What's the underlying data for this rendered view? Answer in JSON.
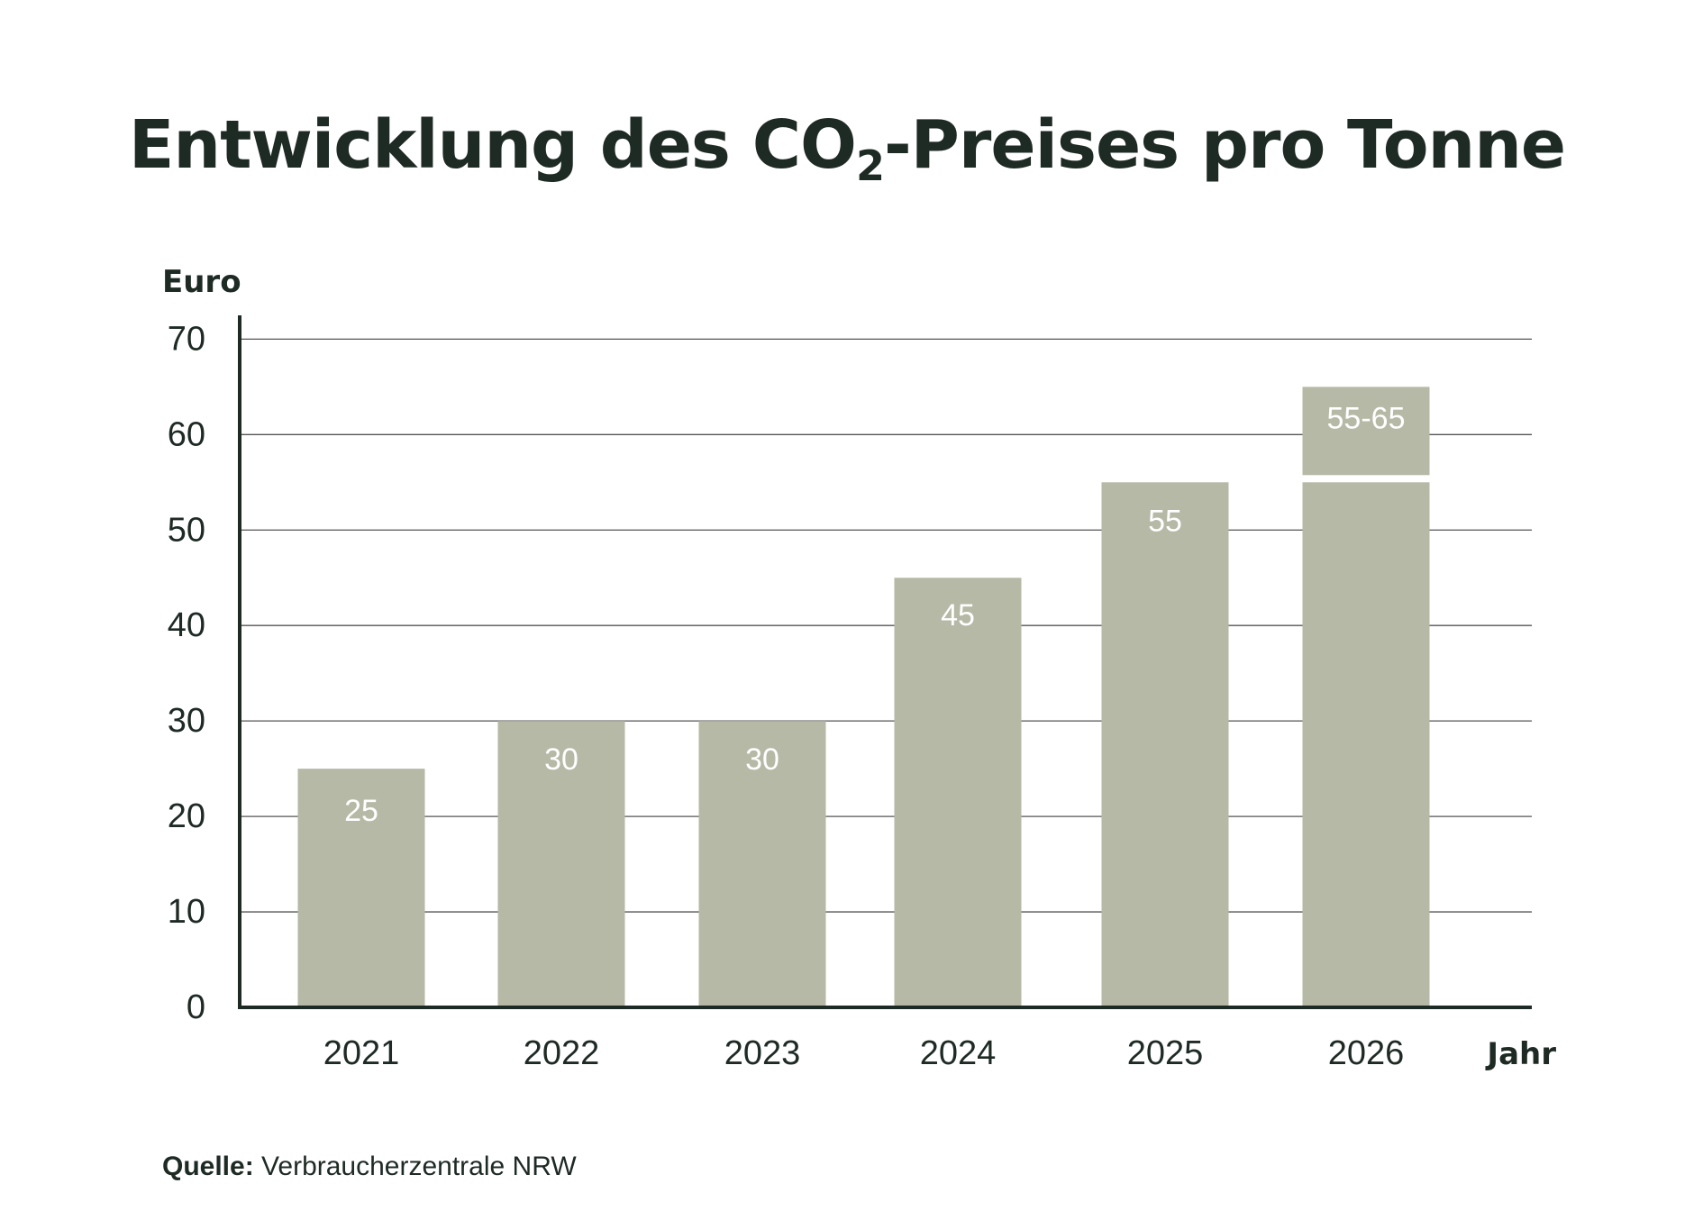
{
  "title": {
    "before_sub": "Entwicklung des CO",
    "sub": "2",
    "after_sub": "-Preises pro Tonne"
  },
  "source": {
    "label": "Quelle:",
    "text": "Verbraucherzentrale NRW"
  },
  "colors": {
    "bar": "#b5b9a5",
    "bar_label": "#ffffff",
    "text": "#1e2a24",
    "grid": "#555555",
    "axis": "#1e2a24"
  },
  "chart_data": {
    "type": "bar",
    "ylabel": "Euro",
    "xlabel": "Jahr",
    "ylim": [
      0,
      70
    ],
    "yticks": [
      0,
      10,
      20,
      30,
      40,
      50,
      60,
      70
    ],
    "grid": true,
    "categories": [
      "2021",
      "2022",
      "2023",
      "2024",
      "2025",
      "2026"
    ],
    "values": [
      25,
      30,
      30,
      45,
      55,
      55
    ],
    "labels": [
      "25",
      "30",
      "30",
      "45",
      "55",
      "55-65"
    ],
    "range_extension": {
      "category": "2026",
      "from": 55,
      "to": 65
    }
  }
}
